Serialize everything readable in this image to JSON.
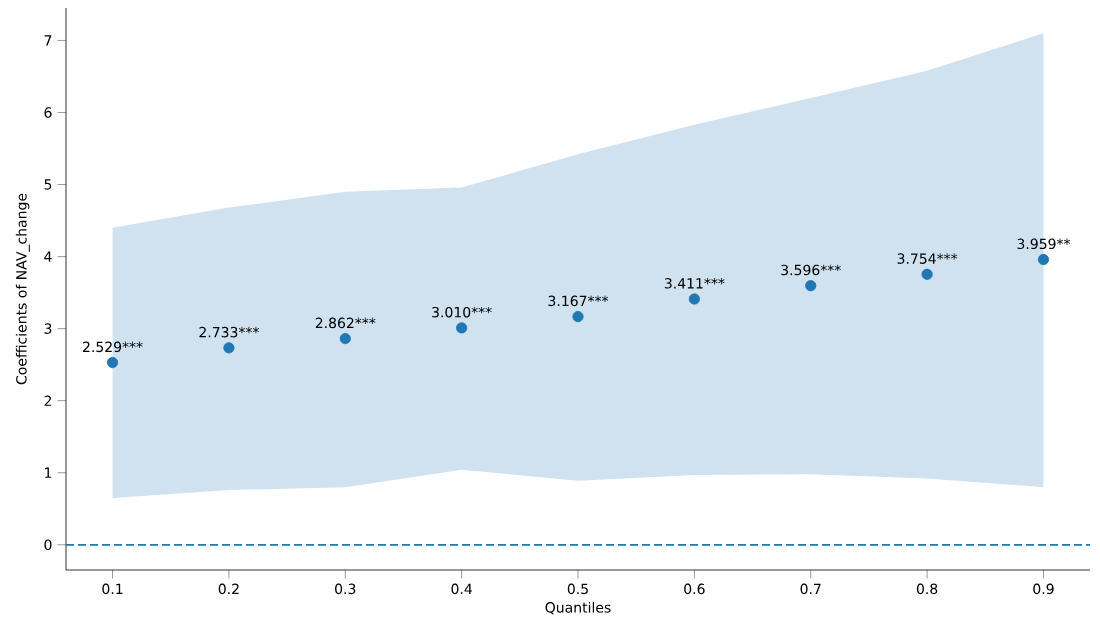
{
  "chart_data": {
    "type": "scatter",
    "xlabel": "Quantiles",
    "ylabel": "Coefficients of NAV_change",
    "x": [
      0.1,
      0.2,
      0.3,
      0.4,
      0.5,
      0.6,
      0.7,
      0.8,
      0.9
    ],
    "series": [
      {
        "color": "#1f77b4",
        "values": [
          2.529,
          2.733,
          2.862,
          3.01,
          3.167,
          3.411,
          3.596,
          3.754,
          3.959
        ],
        "lower": [
          0.65,
          0.76,
          0.8,
          1.04,
          0.89,
          0.97,
          0.98,
          0.92,
          0.8
        ],
        "upper": [
          4.4,
          4.68,
          4.9,
          4.96,
          5.42,
          5.83,
          6.2,
          6.58,
          7.1
        ],
        "value_labels": [
          "2.529***",
          "2.733***",
          "2.862***",
          "3.010***",
          "3.167***",
          "3.411***",
          "3.596***",
          "3.754***",
          "3.959**"
        ]
      }
    ],
    "xlim": [
      0.06,
      0.94
    ],
    "ylim": [
      -0.35,
      7.45
    ],
    "xticks": [
      0.1,
      0.2,
      0.3,
      0.4,
      0.5,
      0.6,
      0.7,
      0.8,
      0.9
    ],
    "yticks": [
      0,
      1,
      2,
      3,
      4,
      5,
      6,
      7
    ],
    "ref_lines": [
      {
        "axis": "y",
        "value": 0,
        "color": "#1f77b4",
        "line_style": "dashed"
      }
    ],
    "marker": "circle",
    "grid": false
  }
}
